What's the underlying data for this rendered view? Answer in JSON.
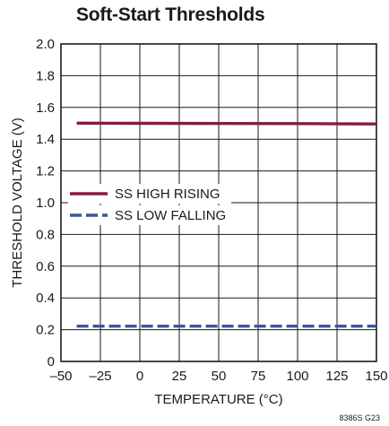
{
  "chart_data": {
    "type": "line",
    "title": "Soft-Start Thresholds",
    "xlabel": "TEMPERATURE (°C)",
    "ylabel": "THRESHOLD VOLTAGE (V)",
    "xlim": [
      -50,
      150
    ],
    "ylim": [
      0,
      2.0
    ],
    "x_ticks": [
      "–50",
      "–25",
      "0",
      "25",
      "50",
      "75",
      "100",
      "125",
      "150"
    ],
    "y_ticks": [
      "0",
      "0.2",
      "0.4",
      "0.6",
      "0.8",
      "1.0",
      "1.2",
      "1.4",
      "1.6",
      "1.8",
      "2.0"
    ],
    "grid": true,
    "legend_position": "middle-left",
    "figure_id": "8386S G23",
    "series": [
      {
        "name": "SS HIGH RISING",
        "color": "#8b1a3a",
        "style": "solid",
        "x": [
          -40,
          0,
          50,
          100,
          150
        ],
        "y": [
          1.501,
          1.5,
          1.499,
          1.498,
          1.496
        ]
      },
      {
        "name": "SS LOW FALLING",
        "color": "#3b55a0",
        "style": "dashed",
        "x": [
          -40,
          0,
          50,
          100,
          150
        ],
        "y": [
          0.222,
          0.222,
          0.222,
          0.222,
          0.222
        ]
      }
    ]
  }
}
